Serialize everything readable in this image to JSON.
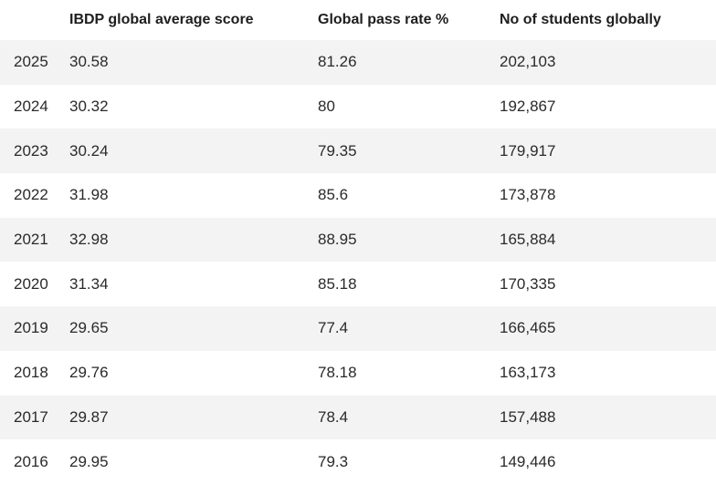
{
  "table": {
    "headers": [
      "",
      "IBDP global average score",
      "Global pass rate %",
      "No of students globally"
    ],
    "rows": [
      [
        "2025",
        "30.58",
        "81.26",
        "202,103"
      ],
      [
        "2024",
        "30.32",
        "80",
        "192,867"
      ],
      [
        "2023",
        "30.24",
        "79.35",
        "179,917"
      ],
      [
        "2022",
        "31.98",
        "85.6",
        "173,878"
      ],
      [
        "2021",
        "32.98",
        "88.95",
        "165,884"
      ],
      [
        "2020",
        "31.34",
        "85.18",
        "170,335"
      ],
      [
        "2019",
        "29.65",
        "77.4",
        "166,465"
      ],
      [
        "2018",
        "29.76",
        "78.18",
        "163,173"
      ],
      [
        "2017",
        "29.87",
        "78.4",
        "157,488"
      ],
      [
        "2016",
        "29.95",
        "79.3",
        "149,446"
      ]
    ]
  }
}
